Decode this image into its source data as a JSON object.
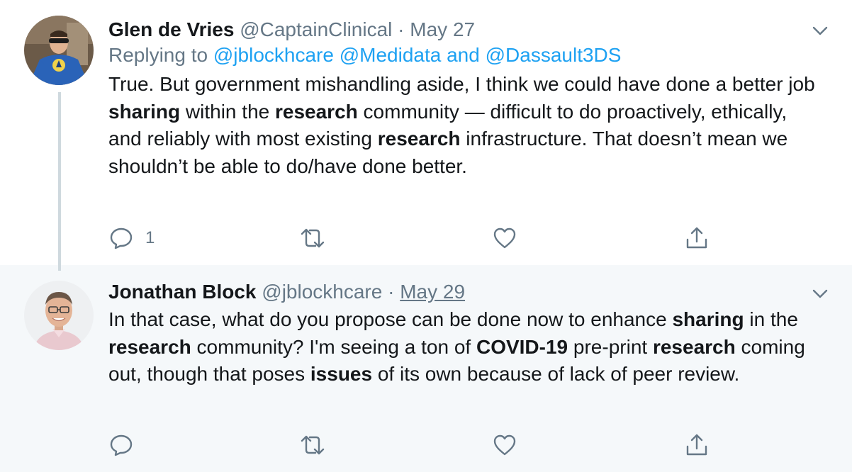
{
  "tweets": [
    {
      "name": "Glen de Vries",
      "handle": "@CaptainClinical",
      "separator": "·",
      "date": "May 27",
      "replying_prefix": "Replying to",
      "mentions": [
        "@jblockhcare",
        "@Medidata",
        "@Dassault3DS"
      ],
      "mention_joiner": "and",
      "text_segments": [
        {
          "t": "True. But government mishandling aside, I think we could have done a better job ",
          "b": false
        },
        {
          "t": "sharing",
          "b": true
        },
        {
          "t": " within the ",
          "b": false
        },
        {
          "t": "research",
          "b": true
        },
        {
          "t": " community — difficult to do proactively, ethically, and reliably with most existing ",
          "b": false
        },
        {
          "t": "research",
          "b": true
        },
        {
          "t": " infrastructure. That doesn’t mean we shouldn’t be able to do/have done better.",
          "b": false
        }
      ],
      "reply_count": "1",
      "retweet_count": "",
      "like_count": "",
      "icons": [
        "reply-icon",
        "retweet-icon",
        "like-icon",
        "share-icon",
        "chevron-down-icon"
      ]
    },
    {
      "name": "Jonathan Block",
      "handle": "@jblockhcare",
      "separator": "·",
      "date": "May 29",
      "text_segments": [
        {
          "t": "In that case, what do you propose can be done now to enhance ",
          "b": false
        },
        {
          "t": "sharing",
          "b": true
        },
        {
          "t": " in the ",
          "b": false
        },
        {
          "t": "research",
          "b": true
        },
        {
          "t": " community? I'm seeing a ton of ",
          "b": false
        },
        {
          "t": "COVID-19",
          "b": true
        },
        {
          "t": " pre-print ",
          "b": false
        },
        {
          "t": "research",
          "b": true
        },
        {
          "t": " coming out, though that poses ",
          "b": false
        },
        {
          "t": "issues",
          "b": true
        },
        {
          "t": " of its own because of lack of peer review.",
          "b": false
        }
      ],
      "reply_count": "",
      "retweet_count": "",
      "like_count": "",
      "icons": [
        "reply-icon",
        "retweet-icon",
        "like-icon",
        "share-icon",
        "chevron-down-icon"
      ]
    }
  ],
  "colors": {
    "text": "#14171a",
    "muted": "#657786",
    "link": "#1da1f2",
    "highlight_bg": "#f5f8fa",
    "thread_line": "#cfd9de"
  }
}
